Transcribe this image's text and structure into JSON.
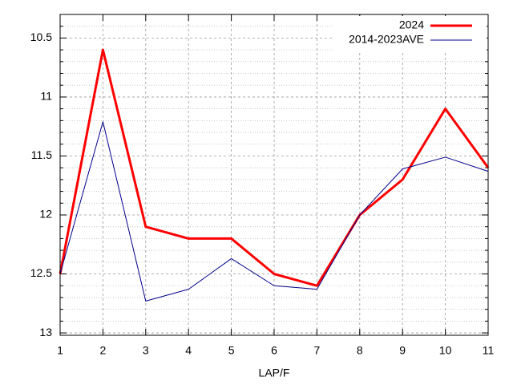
{
  "chart_data": {
    "type": "line",
    "x_label": "LAP/F",
    "x": [
      1,
      2,
      3,
      4,
      5,
      6,
      7,
      8,
      9,
      10,
      11
    ],
    "series": [
      {
        "name": "2024",
        "color": "#ff0000",
        "values": [
          12.5,
          10.6,
          12.1,
          12.2,
          12.2,
          12.5,
          12.6,
          12.0,
          11.7,
          11.1,
          11.6
        ]
      },
      {
        "name": "2014-2023AVE",
        "color": "#00008b",
        "values": [
          12.5,
          11.21,
          12.73,
          12.63,
          12.37,
          12.6,
          12.63,
          12.0,
          11.61,
          11.51,
          11.63
        ]
      }
    ],
    "xlim": [
      1,
      11
    ],
    "xticks": [
      1,
      2,
      3,
      4,
      5,
      6,
      7,
      8,
      9,
      10,
      11
    ],
    "ylim": [
      13.02,
      10.3
    ],
    "yticks": [
      {
        "value": 10.5,
        "label": "10.5"
      },
      11,
      {
        "value": 11.5,
        "label": "11.5"
      },
      12,
      {
        "value": 12.5,
        "label": "12.5"
      },
      13
    ],
    "yminor": 5,
    "grid": true,
    "legend": "top-right"
  }
}
